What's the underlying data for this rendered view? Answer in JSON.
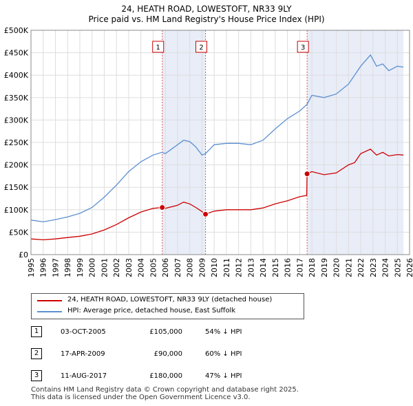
{
  "chart_data": {
    "type": "line",
    "title": "24, HEATH ROAD, LOWESTOFT, NR33 9LY",
    "subtitle": "Price paid vs. HM Land Registry's House Price Index (HPI)",
    "xlim": [
      1995,
      2026
    ],
    "ylim": [
      0,
      500000
    ],
    "x_ticks": [
      1995,
      1996,
      1997,
      1998,
      1999,
      2000,
      2001,
      2002,
      2003,
      2004,
      2005,
      2006,
      2007,
      2008,
      2009,
      2010,
      2011,
      2012,
      2013,
      2014,
      2015,
      2016,
      2017,
      2018,
      2019,
      2020,
      2021,
      2022,
      2023,
      2024,
      2025,
      2026
    ],
    "y_ticks": [
      {
        "value": 0,
        "label": "£0"
      },
      {
        "value": 50000,
        "label": "£50K"
      },
      {
        "value": 100000,
        "label": "£100K"
      },
      {
        "value": 150000,
        "label": "£150K"
      },
      {
        "value": 200000,
        "label": "£200K"
      },
      {
        "value": 250000,
        "label": "£250K"
      },
      {
        "value": 300000,
        "label": "£300K"
      },
      {
        "value": 350000,
        "label": "£350K"
      },
      {
        "value": 400000,
        "label": "£400K"
      },
      {
        "value": 450000,
        "label": "£450K"
      },
      {
        "value": 500000,
        "label": "£500K"
      }
    ],
    "grid": true,
    "shaded_ranges": [
      [
        2005.75,
        2009.29
      ],
      [
        2017.61,
        2025.5
      ]
    ],
    "series": [
      {
        "name": "24, HEATH ROAD, LOWESTOFT, NR33 9LY (detached house)",
        "color": "#cc0000",
        "points": [
          [
            1995,
            35000
          ],
          [
            1996,
            33000
          ],
          [
            1997,
            35000
          ],
          [
            1998,
            38000
          ],
          [
            1999,
            41000
          ],
          [
            2000,
            46000
          ],
          [
            2001,
            55000
          ],
          [
            2002,
            67000
          ],
          [
            2003,
            82000
          ],
          [
            2004,
            95000
          ],
          [
            2005,
            103000
          ],
          [
            2005.75,
            105000
          ],
          [
            2006,
            103000
          ],
          [
            2007,
            110000
          ],
          [
            2007.5,
            117000
          ],
          [
            2008,
            113000
          ],
          [
            2008.5,
            105000
          ],
          [
            2009,
            96000
          ],
          [
            2009.29,
            90000
          ],
          [
            2010,
            97000
          ],
          [
            2011,
            100000
          ],
          [
            2012,
            100000
          ],
          [
            2013,
            100000
          ],
          [
            2014,
            104000
          ],
          [
            2015,
            113000
          ],
          [
            2016,
            120000
          ],
          [
            2017,
            129000
          ],
          [
            2017.58,
            132000
          ],
          [
            2017.61,
            180000
          ],
          [
            2018,
            185000
          ],
          [
            2019,
            178000
          ],
          [
            2020,
            182000
          ],
          [
            2021,
            200000
          ],
          [
            2021.5,
            205000
          ],
          [
            2022,
            225000
          ],
          [
            2022.8,
            235000
          ],
          [
            2023.3,
            222000
          ],
          [
            2023.8,
            228000
          ],
          [
            2024.3,
            220000
          ],
          [
            2025,
            223000
          ],
          [
            2025.5,
            222000
          ]
        ]
      },
      {
        "name": "HPI: Average price, detached house, East Suffolk",
        "color": "#5b8fd0",
        "points": [
          [
            1995,
            77000
          ],
          [
            1996,
            73000
          ],
          [
            1997,
            78000
          ],
          [
            1998,
            84000
          ],
          [
            1999,
            92000
          ],
          [
            2000,
            105000
          ],
          [
            2001,
            128000
          ],
          [
            2002,
            155000
          ],
          [
            2003,
            185000
          ],
          [
            2004,
            207000
          ],
          [
            2005,
            222000
          ],
          [
            2005.75,
            228000
          ],
          [
            2006,
            225000
          ],
          [
            2006.5,
            235000
          ],
          [
            2007,
            245000
          ],
          [
            2007.5,
            255000
          ],
          [
            2008,
            252000
          ],
          [
            2008.5,
            240000
          ],
          [
            2009,
            222000
          ],
          [
            2009.29,
            225000
          ],
          [
            2010,
            245000
          ],
          [
            2011,
            248000
          ],
          [
            2012,
            248000
          ],
          [
            2013,
            245000
          ],
          [
            2014,
            255000
          ],
          [
            2015,
            280000
          ],
          [
            2016,
            303000
          ],
          [
            2017,
            320000
          ],
          [
            2017.61,
            335000
          ],
          [
            2018,
            355000
          ],
          [
            2019,
            350000
          ],
          [
            2020,
            358000
          ],
          [
            2021,
            380000
          ],
          [
            2021.5,
            400000
          ],
          [
            2022,
            420000
          ],
          [
            2022.8,
            445000
          ],
          [
            2023.3,
            420000
          ],
          [
            2023.8,
            425000
          ],
          [
            2024.3,
            410000
          ],
          [
            2025,
            420000
          ],
          [
            2025.5,
            418000
          ]
        ]
      }
    ],
    "sales": [
      {
        "id": "1",
        "x": 2005.75,
        "price": 105000,
        "date": "03-OCT-2005",
        "price_label": "£105,000",
        "hpi": "54% ↓ HPI"
      },
      {
        "id": "2",
        "x": 2009.29,
        "price": 90000,
        "date": "17-APR-2009",
        "price_label": "£90,000",
        "hpi": "60% ↓ HPI"
      },
      {
        "id": "3",
        "x": 2017.61,
        "price": 180000,
        "date": "11-AUG-2017",
        "price_label": "£180,000",
        "hpi": "47% ↓ HPI"
      }
    ]
  },
  "legend": {
    "red_label": "24, HEATH ROAD, LOWESTOFT, NR33 9LY (detached house)",
    "blue_label": "HPI: Average price, detached house, East Suffolk",
    "red_color": "#cc0000",
    "blue_color": "#5b8fd0"
  },
  "footer": {
    "line1": "Contains HM Land Registry data © Crown copyright and database right 2025.",
    "line2": "This data is licensed under the Open Government Licence v3.0."
  }
}
